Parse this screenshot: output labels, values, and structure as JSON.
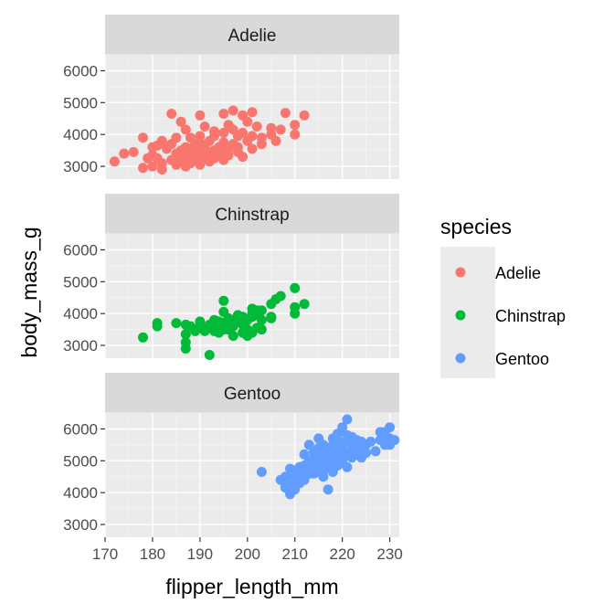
{
  "chart_data": {
    "type": "scatter",
    "xlabel": "flipper_length_mm",
    "ylabel": "body_mass_g",
    "xlim": [
      170,
      232
    ],
    "ylim": [
      2600,
      6500
    ],
    "x_ticks": [
      170,
      180,
      190,
      200,
      210,
      220,
      230
    ],
    "y_ticks": [
      3000,
      4000,
      5000,
      6000
    ],
    "legend": {
      "title": "species",
      "position": "right",
      "entries": [
        {
          "label": "Adelie",
          "color": "#F8766D"
        },
        {
          "label": "Chinstrap",
          "color": "#00BA38"
        },
        {
          "label": "Gentoo",
          "color": "#619CFF"
        }
      ]
    },
    "panels": [
      {
        "name": "Adelie",
        "color": "#F8766D",
        "points": [
          [
            172,
            3150
          ],
          [
            174,
            3400
          ],
          [
            176,
            3450
          ],
          [
            178,
            2950
          ],
          [
            178,
            3900
          ],
          [
            179,
            3250
          ],
          [
            180,
            3600
          ],
          [
            180,
            3350
          ],
          [
            180,
            3000
          ],
          [
            181,
            3650
          ],
          [
            181,
            3250
          ],
          [
            182,
            3100
          ],
          [
            182,
            3800
          ],
          [
            182,
            2900
          ],
          [
            183,
            3550
          ],
          [
            184,
            3200
          ],
          [
            184,
            3700
          ],
          [
            184,
            4650
          ],
          [
            185,
            3400
          ],
          [
            185,
            3050
          ],
          [
            185,
            3900
          ],
          [
            186,
            3500
          ],
          [
            186,
            3300
          ],
          [
            186,
            3150
          ],
          [
            186,
            4400
          ],
          [
            187,
            3350
          ],
          [
            187,
            3600
          ],
          [
            187,
            3000
          ],
          [
            187,
            4150
          ],
          [
            188,
            3300
          ],
          [
            188,
            3550
          ],
          [
            188,
            3900
          ],
          [
            188,
            3100
          ],
          [
            189,
            3450
          ],
          [
            189,
            3700
          ],
          [
            189,
            3200
          ],
          [
            190,
            3500
          ],
          [
            190,
            3400
          ],
          [
            190,
            3950
          ],
          [
            190,
            4600
          ],
          [
            190,
            3050
          ],
          [
            190,
            3750
          ],
          [
            191,
            3300
          ],
          [
            191,
            3650
          ],
          [
            191,
            4250
          ],
          [
            192,
            3450
          ],
          [
            192,
            3150
          ],
          [
            192,
            3800
          ],
          [
            193,
            3500
          ],
          [
            193,
            3950
          ],
          [
            193,
            3250
          ],
          [
            193,
            4100
          ],
          [
            194,
            3600
          ],
          [
            194,
            3350
          ],
          [
            195,
            3500
          ],
          [
            195,
            4050
          ],
          [
            195,
            3200
          ],
          [
            195,
            4650
          ],
          [
            195,
            3750
          ],
          [
            196,
            3550
          ],
          [
            196,
            4300
          ],
          [
            196,
            3350
          ],
          [
            197,
            3700
          ],
          [
            197,
            4750
          ],
          [
            197,
            4150
          ],
          [
            198,
            3450
          ],
          [
            198,
            3950
          ],
          [
            198,
            3600
          ],
          [
            199,
            4050
          ],
          [
            199,
            3300
          ],
          [
            199,
            4600
          ],
          [
            200,
            3800
          ],
          [
            200,
            4400
          ],
          [
            201,
            3550
          ],
          [
            201,
            3950
          ],
          [
            201,
            4700
          ],
          [
            202,
            4250
          ],
          [
            203,
            3700
          ],
          [
            203,
            3900
          ],
          [
            205,
            4000
          ],
          [
            205,
            4200
          ],
          [
            206,
            3800
          ],
          [
            207,
            4150
          ],
          [
            208,
            4675
          ],
          [
            210,
            4300
          ],
          [
            210,
            4000
          ],
          [
            212,
            4600
          ]
        ]
      },
      {
        "name": "Chinstrap",
        "color": "#00BA38",
        "points": [
          [
            178,
            3250
          ],
          [
            181,
            3700
          ],
          [
            181,
            3600
          ],
          [
            185,
            3700
          ],
          [
            187,
            3650
          ],
          [
            187,
            3350
          ],
          [
            187,
            3100
          ],
          [
            187,
            2900
          ],
          [
            188,
            3600
          ],
          [
            189,
            3450
          ],
          [
            190,
            3600
          ],
          [
            190,
            3750
          ],
          [
            191,
            3550
          ],
          [
            191,
            3450
          ],
          [
            192,
            2700
          ],
          [
            192,
            3650
          ],
          [
            193,
            3800
          ],
          [
            193,
            3500
          ],
          [
            193,
            3450
          ],
          [
            194,
            3750
          ],
          [
            194,
            3400
          ],
          [
            195,
            3500
          ],
          [
            195,
            3700
          ],
          [
            195,
            4400
          ],
          [
            195,
            3600
          ],
          [
            195,
            4050
          ],
          [
            196,
            3500
          ],
          [
            196,
            3850
          ],
          [
            197,
            3650
          ],
          [
            197,
            3600
          ],
          [
            197,
            3300
          ],
          [
            197,
            3800
          ],
          [
            198,
            3950
          ],
          [
            198,
            3750
          ],
          [
            199,
            3400
          ],
          [
            199,
            3900
          ],
          [
            199,
            3650
          ],
          [
            200,
            3800
          ],
          [
            200,
            3300
          ],
          [
            200,
            3500
          ],
          [
            201,
            3400
          ],
          [
            201,
            3900
          ],
          [
            201,
            4000
          ],
          [
            201,
            4150
          ],
          [
            202,
            3950
          ],
          [
            202,
            3550
          ],
          [
            202,
            4100
          ],
          [
            203,
            3800
          ],
          [
            203,
            3500
          ],
          [
            203,
            4100
          ],
          [
            205,
            3850
          ],
          [
            205,
            3900
          ],
          [
            205,
            4300
          ],
          [
            206,
            4450
          ],
          [
            207,
            4550
          ],
          [
            210,
            4000
          ],
          [
            210,
            4800
          ],
          [
            210,
            4200
          ],
          [
            212,
            4300
          ]
        ]
      },
      {
        "name": "Gentoo",
        "color": "#619CFF",
        "points": [
          [
            203,
            4650
          ],
          [
            207,
            4400
          ],
          [
            208,
            4300
          ],
          [
            208,
            4150
          ],
          [
            208,
            4500
          ],
          [
            208,
            4200
          ],
          [
            209,
            4400
          ],
          [
            209,
            4750
          ],
          [
            209,
            3950
          ],
          [
            210,
            4200
          ],
          [
            210,
            4550
          ],
          [
            210,
            4400
          ],
          [
            210,
            4700
          ],
          [
            210,
            4100
          ],
          [
            211,
            4550
          ],
          [
            211,
            4800
          ],
          [
            211,
            4300
          ],
          [
            211,
            4650
          ],
          [
            212,
            4400
          ],
          [
            212,
            4850
          ],
          [
            212,
            4750
          ],
          [
            212,
            5200
          ],
          [
            213,
            4600
          ],
          [
            213,
            4950
          ],
          [
            213,
            4750
          ],
          [
            213,
            5000
          ],
          [
            213,
            5500
          ],
          [
            214,
            4850
          ],
          [
            214,
            4600
          ],
          [
            214,
            5100
          ],
          [
            214,
            5300
          ],
          [
            215,
            4650
          ],
          [
            215,
            5000
          ],
          [
            215,
            4700
          ],
          [
            215,
            5400
          ],
          [
            215,
            5700
          ],
          [
            215,
            5100
          ],
          [
            216,
            4950
          ],
          [
            216,
            4700
          ],
          [
            216,
            5200
          ],
          [
            216,
            5500
          ],
          [
            216,
            4500
          ],
          [
            217,
            4850
          ],
          [
            217,
            5050
          ],
          [
            217,
            4100
          ],
          [
            217,
            5350
          ],
          [
            218,
            5000
          ],
          [
            218,
            5200
          ],
          [
            218,
            4650
          ],
          [
            218,
            5500
          ],
          [
            218,
            5700
          ],
          [
            219,
            4850
          ],
          [
            219,
            5100
          ],
          [
            219,
            5300
          ],
          [
            219,
            5850
          ],
          [
            219,
            5650
          ],
          [
            220,
            5000
          ],
          [
            220,
            5200
          ],
          [
            220,
            5400
          ],
          [
            220,
            5550
          ],
          [
            220,
            6050
          ],
          [
            221,
            5200
          ],
          [
            221,
            4800
          ],
          [
            221,
            5800
          ],
          [
            221,
            5700
          ],
          [
            221,
            6300
          ],
          [
            222,
            5300
          ],
          [
            222,
            5500
          ],
          [
            222,
            5100
          ],
          [
            222,
            5750
          ],
          [
            223,
            5250
          ],
          [
            223,
            5650
          ],
          [
            223,
            5400
          ],
          [
            224,
            5350
          ],
          [
            224,
            5600
          ],
          [
            224,
            5100
          ],
          [
            225,
            5500
          ],
          [
            225,
            5250
          ],
          [
            226,
            5600
          ],
          [
            227,
            5300
          ],
          [
            228,
            5650
          ],
          [
            228,
            5900
          ],
          [
            229,
            5500
          ],
          [
            229,
            5900
          ],
          [
            229,
            5800
          ],
          [
            230,
            5700
          ],
          [
            230,
            6050
          ],
          [
            230,
            5500
          ],
          [
            231,
            5650
          ]
        ]
      }
    ]
  }
}
